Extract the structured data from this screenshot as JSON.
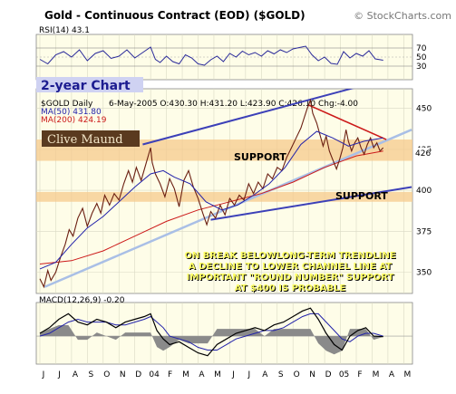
{
  "header": {
    "title": "Gold - Continuous Contract (EOD) ($GOLD)",
    "copyright": "© StockCharts.com"
  },
  "rsi_panel": {
    "label": "RSI(14) 43.1",
    "ticks": [
      "70",
      "50",
      "30"
    ]
  },
  "price_panel": {
    "banner": "2-year Chart",
    "symbol_label": "$GOLD Daily",
    "ohlc_line": "6-May-2005 O:430.30 H:431.20 L:423.90 C:426.10 Chg:-4.00",
    "ma50_label": "MA(50) 431.80",
    "ma200_label": "MA(200) 424.19",
    "brand": "Clive Maund",
    "support_upper": "SUPPORT",
    "support_lower": "SUPPORT",
    "last_value": "426",
    "ticks": [
      "450",
      "425",
      "400",
      "375",
      "350"
    ],
    "annotation": [
      "ON BREAK BELOWLONG-TERM TRENDLINE",
      "A DECLINE TO LOWER CHANNEL LINE AT",
      "IMPORTANT \"ROUND NUMBER\" SUPPORT",
      "AT $400 IS PROBABLE"
    ]
  },
  "macd_panel": {
    "label": "MACD(12,26,9) -0.20"
  },
  "colors": {
    "panel_bg": "#fefde8",
    "banner_bg": "#cfd2f2",
    "banner_text": "#1c1c90",
    "price_line": "#6b1f12",
    "ma50": "#2222aa",
    "ma200": "#cc1a1a",
    "channel": "#3c40b8",
    "trendline_light": "#a9bfe6",
    "downtrend": "#cc1a1a",
    "support_zone": "#f5c98c",
    "annotation_text": "#ffff66",
    "annotation_shadow": "#000000",
    "macd_line": "#000000",
    "macd_hist": "#8a8a8a"
  },
  "chart_data": {
    "type": "line",
    "title": "Gold - Continuous Contract (EOD) ($GOLD)",
    "x_ticks": [
      "J",
      "J",
      "A",
      "S",
      "O",
      "N",
      "D",
      "04",
      "F",
      "M",
      "A",
      "M",
      "J",
      "J",
      "A",
      "S",
      "O",
      "N",
      "D",
      "05",
      "F",
      "M",
      "A",
      "M"
    ],
    "ylim": [
      337,
      462
    ],
    "price_points": [
      [
        0,
        346
      ],
      [
        0.25,
        341
      ],
      [
        0.5,
        351
      ],
      [
        0.7,
        345
      ],
      [
        1,
        350
      ],
      [
        1.3,
        359
      ],
      [
        1.6,
        367
      ],
      [
        1.85,
        376
      ],
      [
        2.1,
        372
      ],
      [
        2.4,
        383
      ],
      [
        2.7,
        389
      ],
      [
        3,
        378
      ],
      [
        3.3,
        386
      ],
      [
        3.6,
        392
      ],
      [
        3.85,
        386
      ],
      [
        4.1,
        397
      ],
      [
        4.4,
        391
      ],
      [
        4.7,
        398
      ],
      [
        5,
        394
      ],
      [
        5.3,
        404
      ],
      [
        5.6,
        412
      ],
      [
        5.85,
        405
      ],
      [
        6.1,
        414
      ],
      [
        6.4,
        406
      ],
      [
        6.7,
        416
      ],
      [
        7,
        426
      ],
      [
        7.1,
        417
      ],
      [
        7.3,
        410
      ],
      [
        7.6,
        404
      ],
      [
        7.9,
        396
      ],
      [
        8.2,
        407
      ],
      [
        8.5,
        401
      ],
      [
        8.8,
        390
      ],
      [
        9.1,
        406
      ],
      [
        9.4,
        412
      ],
      [
        9.7,
        402
      ],
      [
        10,
        395
      ],
      [
        10.3,
        386
      ],
      [
        10.55,
        379
      ],
      [
        10.8,
        387
      ],
      [
        11.1,
        383
      ],
      [
        11.4,
        391
      ],
      [
        11.7,
        385
      ],
      [
        12,
        395
      ],
      [
        12.3,
        391
      ],
      [
        12.6,
        397
      ],
      [
        12.9,
        394
      ],
      [
        13.2,
        404
      ],
      [
        13.5,
        398
      ],
      [
        13.8,
        405
      ],
      [
        14.1,
        401
      ],
      [
        14.4,
        410
      ],
      [
        14.7,
        407
      ],
      [
        15,
        414
      ],
      [
        15.3,
        412
      ],
      [
        15.6,
        420
      ],
      [
        15.9,
        426
      ],
      [
        16.2,
        432
      ],
      [
        16.5,
        438
      ],
      [
        16.7,
        444
      ],
      [
        16.9,
        450
      ],
      [
        17.1,
        455
      ],
      [
        17.25,
        447
      ],
      [
        17.5,
        441
      ],
      [
        17.7,
        434
      ],
      [
        17.9,
        427
      ],
      [
        18.1,
        433
      ],
      [
        18.3,
        424
      ],
      [
        18.5,
        419
      ],
      [
        18.75,
        413
      ],
      [
        18.95,
        419
      ],
      [
        19.15,
        426
      ],
      [
        19.35,
        437
      ],
      [
        19.5,
        430
      ],
      [
        19.7,
        424
      ],
      [
        19.9,
        429
      ],
      [
        20.1,
        432
      ],
      [
        20.3,
        426
      ],
      [
        20.5,
        422
      ],
      [
        20.7,
        428
      ],
      [
        20.9,
        432
      ],
      [
        21.1,
        426
      ],
      [
        21.3,
        429
      ],
      [
        21.5,
        424
      ],
      [
        21.7,
        426
      ]
    ],
    "series": [
      {
        "name": "MA(50)",
        "values": [
          [
            0,
            352
          ],
          [
            1,
            356
          ],
          [
            2,
            367
          ],
          [
            3,
            377
          ],
          [
            4,
            384
          ],
          [
            5,
            393
          ],
          [
            6,
            402
          ],
          [
            7,
            410
          ],
          [
            7.8,
            412
          ],
          [
            8.5,
            408
          ],
          [
            9.5,
            404
          ],
          [
            10.5,
            393
          ],
          [
            11.5,
            388
          ],
          [
            12.5,
            391
          ],
          [
            13.5,
            397
          ],
          [
            14.5,
            404
          ],
          [
            15.5,
            414
          ],
          [
            16.5,
            428
          ],
          [
            17.5,
            436
          ],
          [
            18.5,
            432
          ],
          [
            19.5,
            427
          ],
          [
            20.5,
            430
          ],
          [
            21.7,
            432
          ]
        ]
      },
      {
        "name": "MA(200)",
        "values": [
          [
            0,
            355
          ],
          [
            2,
            357
          ],
          [
            4,
            363
          ],
          [
            6,
            372
          ],
          [
            8,
            381
          ],
          [
            10,
            388
          ],
          [
            12,
            393
          ],
          [
            14,
            398
          ],
          [
            16,
            405
          ],
          [
            18,
            414
          ],
          [
            20,
            421
          ],
          [
            21.7,
            424
          ]
        ]
      }
    ],
    "support_zones": [
      [
        418,
        431
      ],
      [
        393,
        399
      ]
    ],
    "channel_upper": [
      [
        6.5,
        428
      ],
      [
        23.5,
        472
      ]
    ],
    "channel_lower": [
      [
        10.8,
        382
      ],
      [
        23.5,
        402
      ]
    ],
    "trendline": [
      [
        0.3,
        341
      ],
      [
        23.5,
        437
      ]
    ],
    "downtrend": [
      [
        17.0,
        452
      ],
      [
        21.9,
        431
      ]
    ],
    "rsi": {
      "ylim": [
        0,
        100
      ],
      "levels": [
        70,
        50,
        30
      ],
      "values": [
        [
          0,
          45
        ],
        [
          0.5,
          35
        ],
        [
          1,
          55
        ],
        [
          1.5,
          62
        ],
        [
          2,
          50
        ],
        [
          2.5,
          66
        ],
        [
          3,
          42
        ],
        [
          3.5,
          58
        ],
        [
          4,
          64
        ],
        [
          4.5,
          47
        ],
        [
          5,
          52
        ],
        [
          5.5,
          66
        ],
        [
          6,
          48
        ],
        [
          6.5,
          60
        ],
        [
          7,
          72
        ],
        [
          7.3,
          45
        ],
        [
          7.6,
          38
        ],
        [
          8,
          52
        ],
        [
          8.4,
          40
        ],
        [
          8.8,
          35
        ],
        [
          9.2,
          55
        ],
        [
          9.6,
          48
        ],
        [
          10,
          35
        ],
        [
          10.4,
          32
        ],
        [
          10.8,
          44
        ],
        [
          11.2,
          52
        ],
        [
          11.6,
          40
        ],
        [
          12,
          58
        ],
        [
          12.4,
          50
        ],
        [
          12.8,
          63
        ],
        [
          13.2,
          55
        ],
        [
          13.6,
          60
        ],
        [
          14,
          52
        ],
        [
          14.4,
          64
        ],
        [
          14.8,
          57
        ],
        [
          15.2,
          66
        ],
        [
          15.6,
          60
        ],
        [
          16,
          68
        ],
        [
          16.4,
          71
        ],
        [
          16.8,
          74
        ],
        [
          17.2,
          55
        ],
        [
          17.6,
          42
        ],
        [
          18,
          50
        ],
        [
          18.4,
          36
        ],
        [
          18.8,
          34
        ],
        [
          19.2,
          62
        ],
        [
          19.6,
          48
        ],
        [
          20,
          58
        ],
        [
          20.4,
          52
        ],
        [
          20.8,
          64
        ],
        [
          21.2,
          46
        ],
        [
          21.7,
          43
        ]
      ]
    },
    "macd": {
      "values": [
        [
          0,
          1
        ],
        [
          0.6,
          3
        ],
        [
          1.2,
          6
        ],
        [
          1.8,
          8
        ],
        [
          2.4,
          5
        ],
        [
          3,
          4
        ],
        [
          3.6,
          6
        ],
        [
          4.2,
          5
        ],
        [
          4.8,
          3
        ],
        [
          5.4,
          5
        ],
        [
          6,
          6
        ],
        [
          6.6,
          7
        ],
        [
          7,
          8
        ],
        [
          7.4,
          2
        ],
        [
          7.8,
          -1
        ],
        [
          8.2,
          -3
        ],
        [
          8.8,
          -2
        ],
        [
          9.4,
          -4
        ],
        [
          10,
          -6
        ],
        [
          10.6,
          -7
        ],
        [
          11.2,
          -3
        ],
        [
          11.8,
          -1
        ],
        [
          12.4,
          1
        ],
        [
          13,
          2
        ],
        [
          13.6,
          3
        ],
        [
          14.2,
          2
        ],
        [
          14.8,
          4
        ],
        [
          15.4,
          5
        ],
        [
          16,
          7
        ],
        [
          16.6,
          9
        ],
        [
          17.1,
          10
        ],
        [
          17.6,
          6
        ],
        [
          18.1,
          1
        ],
        [
          18.6,
          -3
        ],
        [
          19.1,
          -5
        ],
        [
          19.6,
          0
        ],
        [
          20.1,
          2
        ],
        [
          20.6,
          3
        ],
        [
          21.1,
          0
        ],
        [
          21.7,
          -0.2
        ]
      ],
      "signal": [
        [
          0,
          0
        ],
        [
          0.6,
          1
        ],
        [
          1.2,
          3
        ],
        [
          1.8,
          5
        ],
        [
          2.4,
          6
        ],
        [
          3,
          5
        ],
        [
          3.6,
          5
        ],
        [
          4.2,
          5
        ],
        [
          4.8,
          4
        ],
        [
          5.4,
          4
        ],
        [
          6,
          5
        ],
        [
          6.6,
          6
        ],
        [
          7,
          7
        ],
        [
          7.4,
          5
        ],
        [
          7.8,
          3
        ],
        [
          8.2,
          0
        ],
        [
          8.8,
          -1
        ],
        [
          9.4,
          -2
        ],
        [
          10,
          -4
        ],
        [
          10.6,
          -5
        ],
        [
          11.2,
          -5
        ],
        [
          11.8,
          -3
        ],
        [
          12.4,
          -1
        ],
        [
          13,
          0
        ],
        [
          13.6,
          1
        ],
        [
          14.2,
          2
        ],
        [
          14.8,
          2
        ],
        [
          15.4,
          3
        ],
        [
          16,
          5
        ],
        [
          16.6,
          7
        ],
        [
          17.1,
          8
        ],
        [
          17.6,
          8
        ],
        [
          18.1,
          5
        ],
        [
          18.6,
          2
        ],
        [
          19.1,
          -1
        ],
        [
          19.6,
          -2
        ],
        [
          20.1,
          0
        ],
        [
          20.6,
          1
        ],
        [
          21.1,
          1
        ],
        [
          21.7,
          0
        ]
      ],
      "ylim": [
        -10,
        12
      ]
    }
  }
}
